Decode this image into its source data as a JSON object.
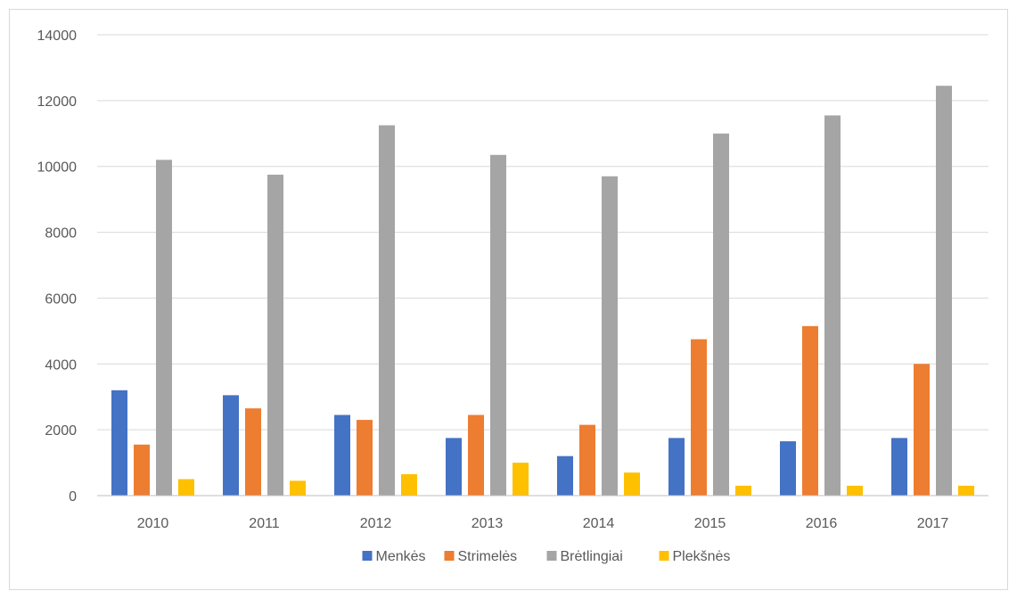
{
  "chart_data": {
    "type": "bar",
    "title": "",
    "xlabel": "",
    "ylabel": "",
    "categories": [
      "2010",
      "2011",
      "2012",
      "2013",
      "2014",
      "2015",
      "2016",
      "2017"
    ],
    "ylim": [
      0,
      14000
    ],
    "yticks": [
      0,
      2000,
      4000,
      6000,
      8000,
      10000,
      12000,
      14000
    ],
    "grid": true,
    "legend_position": "bottom",
    "series": [
      {
        "name": "Menkės",
        "color": "#4472C4",
        "values": [
          3200,
          3050,
          2450,
          1750,
          1200,
          1750,
          1650,
          1750
        ]
      },
      {
        "name": "Strimelės",
        "color": "#ED7D31",
        "values": [
          1550,
          2650,
          2300,
          2450,
          2150,
          4750,
          5150,
          4000
        ]
      },
      {
        "name": "Brėtlingiai",
        "color": "#A5A5A5",
        "values": [
          10200,
          9750,
          11250,
          10350,
          9700,
          11000,
          11550,
          12450
        ]
      },
      {
        "name": "Plekšnės",
        "color": "#FFC000",
        "values": [
          500,
          450,
          650,
          1000,
          700,
          300,
          300,
          300
        ]
      }
    ]
  }
}
